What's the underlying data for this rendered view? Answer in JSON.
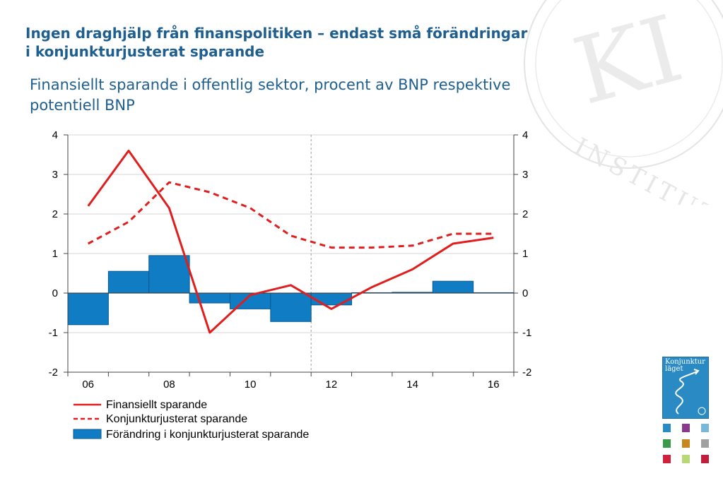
{
  "title": "Ingen draghjälp från finanspolitiken – endast små förändringar i konjunkturjusterat sparande",
  "subtitle": "Finansiellt sparande i offentlig sektor, procent av BNP respektive potentiell BNP",
  "seal": {
    "monogram": "KI",
    "ring_text": "INSTITUTET"
  },
  "book": {
    "title": "Konjunktur läget",
    "color": "#2a8ac4"
  },
  "thumbnail_colors": [
    "#2a8ac4",
    "#8a3a8c",
    "#7ab8d8",
    "#3a9a4a",
    "#c8861e",
    "#a0a0a0",
    "#d0203a",
    "#b8d878",
    "#c01e3c"
  ],
  "colors": {
    "title": "#1f5f8f",
    "line": "#e01e1e",
    "bar": "#0f7cc4",
    "bar_edge": "#0a5a90"
  },
  "chart_data": {
    "type": "bar",
    "years": [
      2006,
      2007,
      2008,
      2009,
      2010,
      2011,
      2012,
      2013,
      2014,
      2015,
      2016
    ],
    "x_tick_labels": [
      "06",
      "08",
      "10",
      "12",
      "14",
      "16"
    ],
    "x_tick_years": [
      2006,
      2008,
      2010,
      2012,
      2014,
      2016
    ],
    "y_ticks": [
      4,
      3,
      2,
      1,
      0,
      -1,
      -2
    ],
    "y_tick_labels": [
      "4",
      "3",
      "2",
      "1",
      "0",
      "-1",
      "-2"
    ],
    "ylim": [
      -2,
      4
    ],
    "grid": true,
    "forecast_divider_year": 2011.5,
    "series": [
      {
        "name": "Finansiellt sparande",
        "kind": "line",
        "style": "solid",
        "values": [
          2.2,
          3.6,
          2.15,
          -1.0,
          -0.05,
          0.2,
          -0.4,
          0.15,
          0.6,
          1.25,
          1.4
        ]
      },
      {
        "name": "Konjunkturjusterat sparande",
        "kind": "line",
        "style": "dashed",
        "values": [
          1.25,
          1.8,
          2.8,
          2.55,
          2.15,
          1.45,
          1.15,
          1.15,
          1.2,
          1.5,
          1.5
        ]
      },
      {
        "name": "Förändring i konjunkturjusterat sparande",
        "kind": "bar",
        "values": [
          -0.8,
          0.55,
          0.95,
          -0.25,
          -0.4,
          -0.72,
          -0.3,
          0.01,
          0.02,
          0.3,
          0.01
        ]
      }
    ],
    "legend": {
      "position": "bottom-left",
      "entries": [
        "Finansiellt sparande",
        "Konjunkturjusterat sparande",
        "Förändring i konjunkturjusterat sparande"
      ]
    }
  }
}
